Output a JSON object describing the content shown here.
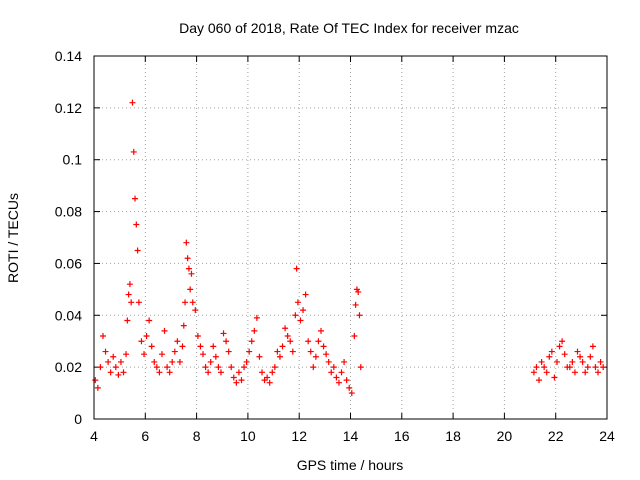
{
  "chart_data": {
    "type": "scatter",
    "title": "Day 060 of 2018, Rate Of TEC Index for receiver mzac",
    "xlabel": "GPS time / hours",
    "ylabel": "ROTI / TECUs",
    "xlim": [
      4,
      24
    ],
    "ylim": [
      0,
      0.14
    ],
    "xticks": [
      4,
      6,
      8,
      10,
      12,
      14,
      16,
      18,
      20,
      22,
      24
    ],
    "yticks": [
      0,
      0.02,
      0.04,
      0.06,
      0.08,
      0.1,
      0.12,
      0.14
    ],
    "ytick_labels": [
      "0",
      "0.02",
      "0.04",
      "0.06",
      "0.08",
      "0.1",
      "0.12",
      "0.14"
    ],
    "grid": true,
    "marker": "+",
    "series": [
      {
        "name": "ROTI",
        "color": "#ff0000",
        "x": [
          4.05,
          4.15,
          4.25,
          4.35,
          4.45,
          4.55,
          4.65,
          4.75,
          4.85,
          4.95,
          5.05,
          5.15,
          5.25,
          5.3,
          5.35,
          5.4,
          5.45,
          5.5,
          5.55,
          5.6,
          5.65,
          5.7,
          5.75,
          5.85,
          5.95,
          6.05,
          6.15,
          6.25,
          6.35,
          6.45,
          6.55,
          6.65,
          6.75,
          6.85,
          6.95,
          7.05,
          7.15,
          7.25,
          7.35,
          7.45,
          7.5,
          7.55,
          7.6,
          7.65,
          7.7,
          7.75,
          7.8,
          7.85,
          7.95,
          8.05,
          8.15,
          8.25,
          8.35,
          8.45,
          8.55,
          8.65,
          8.75,
          8.85,
          8.95,
          9.05,
          9.15,
          9.25,
          9.35,
          9.45,
          9.55,
          9.65,
          9.75,
          9.85,
          9.95,
          10.05,
          10.15,
          10.25,
          10.35,
          10.45,
          10.55,
          10.65,
          10.75,
          10.85,
          10.95,
          11.05,
          11.15,
          11.25,
          11.35,
          11.45,
          11.55,
          11.65,
          11.75,
          11.85,
          11.9,
          11.95,
          12.05,
          12.15,
          12.25,
          12.35,
          12.45,
          12.55,
          12.65,
          12.75,
          12.85,
          12.95,
          13.05,
          13.15,
          13.25,
          13.35,
          13.45,
          13.55,
          13.65,
          13.75,
          13.85,
          13.95,
          14.05,
          14.15,
          14.2,
          14.25,
          14.3,
          14.35,
          14.4,
          21.15,
          21.25,
          21.35,
          21.45,
          21.55,
          21.65,
          21.75,
          21.85,
          21.95,
          22.05,
          22.15,
          22.25,
          22.35,
          22.45,
          22.55,
          22.65,
          22.75,
          22.85,
          22.95,
          23.05,
          23.15,
          23.25,
          23.35,
          23.45,
          23.55,
          23.65,
          23.75,
          23.85
        ],
        "y": [
          0.015,
          0.012,
          0.02,
          0.032,
          0.026,
          0.022,
          0.018,
          0.024,
          0.02,
          0.017,
          0.022,
          0.018,
          0.025,
          0.038,
          0.048,
          0.052,
          0.045,
          0.122,
          0.103,
          0.085,
          0.075,
          0.065,
          0.045,
          0.03,
          0.025,
          0.032,
          0.038,
          0.028,
          0.022,
          0.02,
          0.018,
          0.025,
          0.034,
          0.02,
          0.018,
          0.022,
          0.026,
          0.03,
          0.022,
          0.028,
          0.036,
          0.045,
          0.068,
          0.062,
          0.058,
          0.05,
          0.056,
          0.045,
          0.042,
          0.032,
          0.028,
          0.025,
          0.02,
          0.018,
          0.022,
          0.028,
          0.024,
          0.02,
          0.018,
          0.033,
          0.03,
          0.026,
          0.02,
          0.016,
          0.014,
          0.018,
          0.015,
          0.02,
          0.022,
          0.026,
          0.03,
          0.034,
          0.039,
          0.024,
          0.018,
          0.015,
          0.016,
          0.014,
          0.018,
          0.02,
          0.026,
          0.024,
          0.028,
          0.035,
          0.032,
          0.03,
          0.026,
          0.04,
          0.058,
          0.045,
          0.038,
          0.042,
          0.048,
          0.03,
          0.026,
          0.02,
          0.024,
          0.03,
          0.034,
          0.028,
          0.025,
          0.022,
          0.018,
          0.02,
          0.016,
          0.014,
          0.018,
          0.022,
          0.015,
          0.012,
          0.01,
          0.032,
          0.044,
          0.05,
          0.049,
          0.04,
          0.02,
          0.018,
          0.02,
          0.015,
          0.022,
          0.02,
          0.018,
          0.024,
          0.026,
          0.016,
          0.022,
          0.028,
          0.03,
          0.025,
          0.02,
          0.02,
          0.022,
          0.018,
          0.026,
          0.024,
          0.022,
          0.018,
          0.02,
          0.024,
          0.028,
          0.02,
          0.018,
          0.022,
          0.02
        ]
      }
    ],
    "annotations": []
  }
}
